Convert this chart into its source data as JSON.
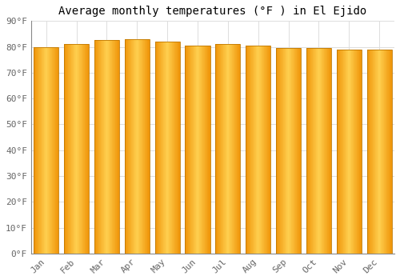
{
  "title": "Average monthly temperatures (°F ) in El Ejido",
  "months": [
    "Jan",
    "Feb",
    "Mar",
    "Apr",
    "May",
    "Jun",
    "Jul",
    "Aug",
    "Sep",
    "Oct",
    "Nov",
    "Dec"
  ],
  "values": [
    80,
    81,
    82.5,
    83,
    82,
    80.5,
    81,
    80.5,
    79.5,
    79.5,
    79,
    79
  ],
  "ylim": [
    0,
    90
  ],
  "yticks": [
    0,
    10,
    20,
    30,
    40,
    50,
    60,
    70,
    80,
    90
  ],
  "ytick_labels": [
    "0°F",
    "10°F",
    "20°F",
    "30°F",
    "40°F",
    "50°F",
    "60°F",
    "70°F",
    "80°F",
    "90°F"
  ],
  "bar_color_center": "#FFD050",
  "bar_color_edge": "#F0960A",
  "bar_edge_color": "#C07800",
  "background_color": "#FFFFFF",
  "grid_color": "#DDDDDD",
  "title_fontsize": 10,
  "tick_fontsize": 8,
  "font_family": "monospace"
}
